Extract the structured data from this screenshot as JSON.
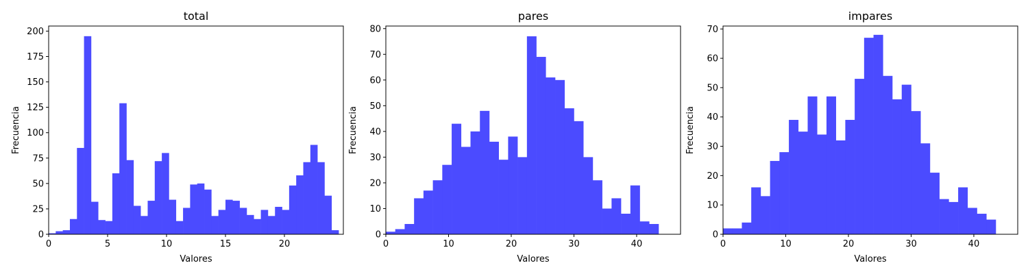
{
  "figure": {
    "bar_color": "#4b4bff",
    "axis_color": "#000000",
    "background": "#ffffff"
  },
  "chart_data": [
    {
      "type": "bar",
      "title": "total",
      "xlabel": "Valores",
      "ylabel": "Frecuencia",
      "xlim": [
        0,
        25
      ],
      "ylim": [
        0,
        205
      ],
      "xticks": [
        0,
        5,
        10,
        15,
        20
      ],
      "yticks": [
        0,
        25,
        50,
        75,
        100,
        125,
        150,
        175,
        200
      ],
      "bin_start": 0,
      "bin_width": 0.6,
      "values": [
        1,
        3,
        4,
        15,
        85,
        195,
        32,
        14,
        13,
        60,
        129,
        73,
        28,
        18,
        33,
        72,
        80,
        34,
        13,
        26,
        49,
        50,
        44,
        18,
        24,
        34,
        33,
        26,
        19,
        15,
        24,
        18,
        27,
        24,
        48,
        58,
        71,
        88,
        71,
        38,
        4
      ]
    },
    {
      "type": "bar",
      "title": "pares",
      "xlabel": "Valores",
      "ylabel": "Frecuencia",
      "xlim": [
        0,
        47
      ],
      "ylim": [
        0,
        81
      ],
      "xticks": [
        0,
        10,
        20,
        30,
        40
      ],
      "yticks": [
        0,
        10,
        20,
        30,
        40,
        50,
        60,
        70,
        80
      ],
      "bin_start": 0,
      "bin_width": 1.5,
      "values": [
        1,
        2,
        4,
        14,
        17,
        21,
        27,
        43,
        34,
        40,
        48,
        36,
        29,
        38,
        30,
        77,
        69,
        61,
        60,
        49,
        44,
        30,
        21,
        10,
        14,
        8,
        19,
        5,
        4
      ]
    },
    {
      "type": "bar",
      "title": "impares",
      "xlabel": "Valores",
      "ylabel": "Frecuencia",
      "xlim": [
        0,
        47
      ],
      "ylim": [
        0,
        71
      ],
      "xticks": [
        0,
        10,
        20,
        30,
        40
      ],
      "yticks": [
        0,
        10,
        20,
        30,
        40,
        50,
        60,
        70
      ],
      "bin_start": 0,
      "bin_width": 1.5,
      "values": [
        2,
        2,
        4,
        16,
        13,
        25,
        28,
        39,
        35,
        47,
        34,
        47,
        32,
        39,
        53,
        67,
        68,
        54,
        46,
        51,
        42,
        31,
        21,
        12,
        11,
        16,
        9,
        7,
        5
      ]
    }
  ]
}
